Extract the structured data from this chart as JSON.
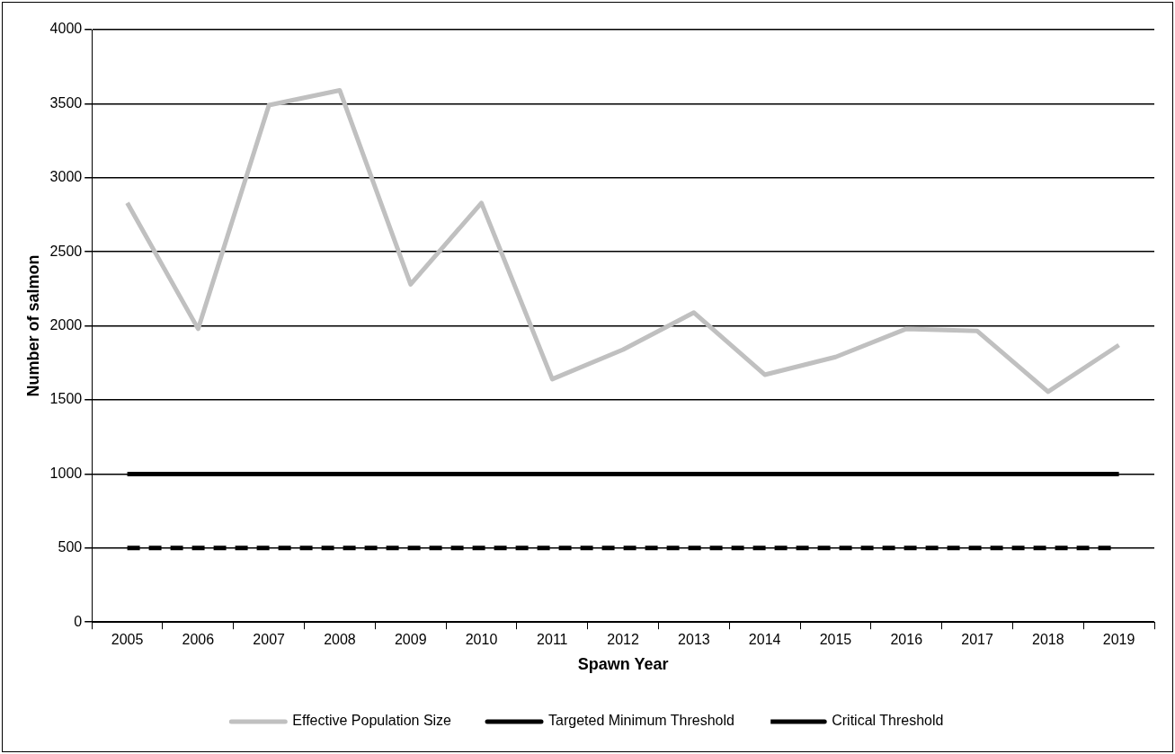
{
  "chart_data": {
    "type": "line",
    "xlabel": "Spawn Year",
    "ylabel": "Number of salmon",
    "categories": [
      "2005",
      "2006",
      "2007",
      "2008",
      "2009",
      "2010",
      "2011",
      "2012",
      "2013",
      "2014",
      "2015",
      "2016",
      "2017",
      "2018",
      "2019"
    ],
    "series": [
      {
        "name": "Effective Population Size",
        "color": "#c0c0c0",
        "line_style": "solid",
        "values": [
          2830,
          1980,
          3490,
          3590,
          2280,
          2830,
          1640,
          1840,
          2090,
          1670,
          1790,
          1980,
          1965,
          1555,
          1870
        ]
      },
      {
        "name": "Targeted Minimum Threshold",
        "color": "#000000",
        "line_style": "solid",
        "values": [
          1000,
          1000,
          1000,
          1000,
          1000,
          1000,
          1000,
          1000,
          1000,
          1000,
          1000,
          1000,
          1000,
          1000,
          1000
        ]
      },
      {
        "name": "Critical Threshold",
        "color": "#000000",
        "line_style": "dashed",
        "values": [
          500,
          500,
          500,
          500,
          500,
          500,
          500,
          500,
          500,
          500,
          500,
          500,
          500,
          500,
          500
        ]
      }
    ],
    "ylim": [
      0,
      4000
    ],
    "yticks": [
      0,
      500,
      1000,
      1500,
      2000,
      2500,
      3000,
      3500,
      4000
    ],
    "grid": "y",
    "legend": "bottom",
    "marker": "none"
  }
}
